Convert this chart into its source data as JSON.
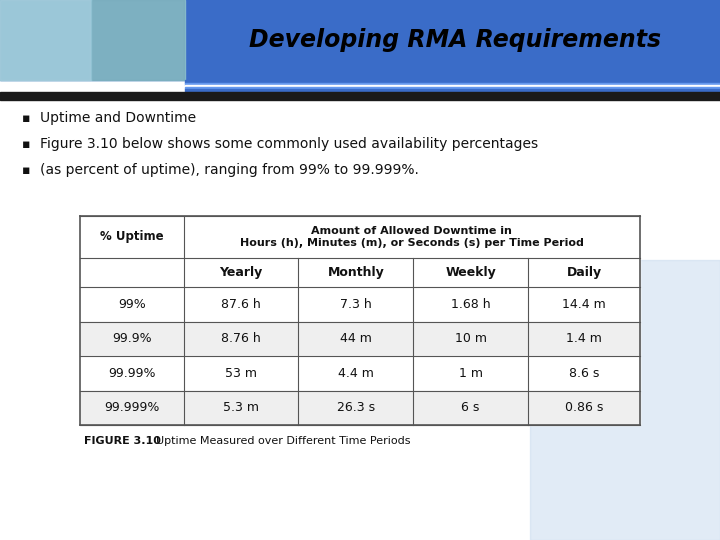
{
  "title": "Developing RMA Requirements",
  "title_color": "#000000",
  "title_bg_color": "#3366CC",
  "bullets": [
    "Uptime and Downtime",
    "Figure 3.10 below shows some commonly used availability percentages",
    "(as percent of uptime), ranging from 99% to 99.999%."
  ],
  "table_col_header1": "% Uptime",
  "table_col_header2": "Amount of Allowed Downtime in\nHours (h), Minutes (m), or Seconds (s) per Time Period",
  "table_subheaders": [
    "Yearly",
    "Monthly",
    "Weekly",
    "Daily"
  ],
  "table_rows": [
    [
      "99%",
      "87.6 h",
      "7.3 h",
      "1.68 h",
      "14.4 m"
    ],
    [
      "99.9%",
      "8.76 h",
      "44 m",
      "10 m",
      "1.4 m"
    ],
    [
      "99.99%",
      "53 m",
      "4.4 m",
      "1 m",
      "8.6 s"
    ],
    [
      "99.999%",
      "5.3 m",
      "26.3 s",
      "6 s",
      "0.86 s"
    ]
  ],
  "figure_label": "FIGURE 3.10",
  "figure_caption": "Uptime Measured over Different Time Periods",
  "slide_bg": "#FFFFFF",
  "table_border_color": "#555555",
  "row_colors": [
    "#FFFFFF",
    "#EFEFEF"
  ],
  "header_blue": "#3A6CC8",
  "stripe_white": "#FFFFFF",
  "stripe_blue": "#5588DD",
  "black_band": "#1A1A1A",
  "img_area_color": "#6BAED6",
  "right_deco_color": "#C5D8EE",
  "bullet_char": "▪"
}
